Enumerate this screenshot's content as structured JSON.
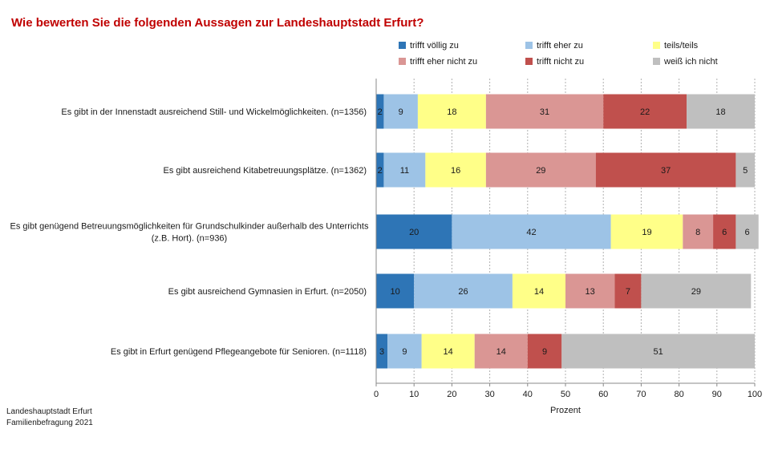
{
  "title": "Wie bewerten Sie die folgenden Aussagen zur Landeshauptstadt Erfurt?",
  "source": [
    "Landeshauptstadt Erfurt",
    "Familienbefragung 2021"
  ],
  "chart_data": {
    "type": "bar",
    "orientation": "horizontal",
    "stacked": true,
    "categories": [
      [
        "Es gibt in der Innenstadt ausreichend Still- und Wickelmöglichkeiten. (n=1356)"
      ],
      [
        "Es gibt ausreichend Kitabetreuungsplätze. (n=1362)"
      ],
      [
        "Es gibt genügend Betreuungsmöglichkeiten für Grundschulkinder außerhalb des Unterrichts",
        "(z.B. Hort). (n=936)"
      ],
      [
        "Es gibt ausreichend Gymnasien in Erfurt. (n=2050)"
      ],
      [
        "Es gibt in Erfurt genügend Pflegeangebote für Senioren. (n=1118)"
      ]
    ],
    "series": [
      {
        "name": "trifft völlig zu",
        "color": "#2e75b6",
        "values": [
          2,
          2,
          20,
          10,
          3
        ]
      },
      {
        "name": "trifft eher zu",
        "color": "#9dc3e6",
        "values": [
          9,
          11,
          42,
          26,
          9
        ]
      },
      {
        "name": "teils/teils",
        "color": "#ffff88",
        "values": [
          18,
          16,
          19,
          14,
          14
        ]
      },
      {
        "name": "trifft eher nicht zu",
        "color": "#da9694",
        "values": [
          31,
          29,
          8,
          13,
          14
        ]
      },
      {
        "name": "trifft nicht zu",
        "color": "#c0504d",
        "values": [
          22,
          37,
          6,
          7,
          9
        ]
      },
      {
        "name": "weiß ich nicht",
        "color": "#bfbfbf",
        "values": [
          18,
          5,
          6,
          29,
          51
        ]
      }
    ],
    "xlabel": "Prozent",
    "xlim": [
      0,
      100
    ],
    "xticks": [
      0,
      10,
      20,
      30,
      40,
      50,
      60,
      70,
      80,
      90,
      100
    ],
    "grid": true,
    "legend_position": "top-right"
  }
}
